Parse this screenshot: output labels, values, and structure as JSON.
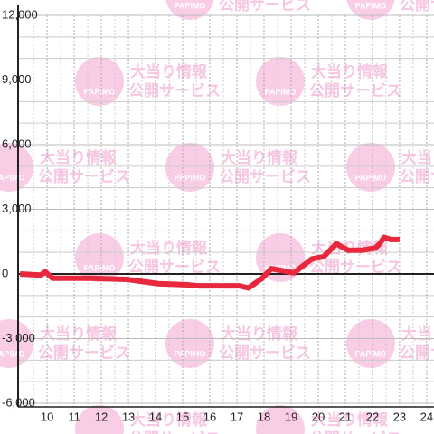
{
  "chart_data": {
    "type": "line",
    "watermark": {
      "lines": [
        "大当り情報",
        "公開サービス"
      ],
      "logo": "PAPIMO"
    },
    "x": [
      9.0,
      9.77,
      9.93,
      10.2,
      11.6,
      12.93,
      14.1,
      15.1,
      15.6,
      17.1,
      17.43,
      17.93,
      18.27,
      19.1,
      19.77,
      20.2,
      20.67,
      21.1,
      21.6,
      22.1,
      22.27,
      22.43,
      22.67,
      23.0
    ],
    "series": [
      {
        "color": "#e8283c",
        "values": [
          0,
          -50,
          100,
          -200,
          -200,
          -250,
          -450,
          -500,
          -550,
          -550,
          -650,
          -200,
          250,
          50,
          700,
          800,
          1400,
          1100,
          1100,
          1200,
          1400,
          1700,
          1600,
          1600
        ]
      }
    ],
    "xlim": [
      8.93,
      24.27
    ],
    "xticks": [
      10,
      11,
      12,
      13,
      14,
      15,
      16,
      17,
      18,
      19,
      20,
      21,
      22,
      23,
      24
    ],
    "ylim": [
      -6000,
      12000
    ],
    "yticks": [
      {
        "value": -6000,
        "label": "-6,000"
      },
      {
        "value": -3000,
        "label": "-3,000"
      },
      0,
      {
        "value": 3000,
        "label": "3,000"
      },
      {
        "value": 6000,
        "label": "6,000"
      },
      {
        "value": 9000,
        "label": "9,000"
      },
      {
        "value": 12000,
        "label": "12,000"
      }
    ],
    "grid": true
  }
}
